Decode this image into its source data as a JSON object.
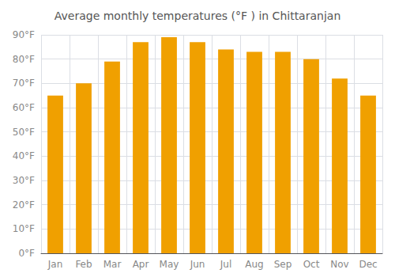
{
  "chart_data": {
    "type": "bar",
    "title": "Average monthly temperatures (°F ) in Chittaranjan",
    "categories": [
      "Jan",
      "Feb",
      "Mar",
      "Apr",
      "May",
      "Jun",
      "Jul",
      "Aug",
      "Sep",
      "Oct",
      "Nov",
      "Dec"
    ],
    "values": [
      65,
      70,
      79,
      87,
      89,
      87,
      84,
      83,
      83,
      80,
      72,
      65
    ],
    "color": "#F0A000",
    "ylim": [
      0,
      90
    ],
    "yticks": [
      {
        "value": 0,
        "label": "0°F"
      },
      {
        "value": 10,
        "label": "10°F"
      },
      {
        "value": 20,
        "label": "20°F"
      },
      {
        "value": 30,
        "label": "30°F"
      },
      {
        "value": 40,
        "label": "40°F"
      },
      {
        "value": 50,
        "label": "50°F"
      },
      {
        "value": 60,
        "label": "60°F"
      },
      {
        "value": 70,
        "label": "70°F"
      },
      {
        "value": 80,
        "label": "80°F"
      },
      {
        "value": 90,
        "label": "90°F"
      }
    ],
    "grid": true
  }
}
